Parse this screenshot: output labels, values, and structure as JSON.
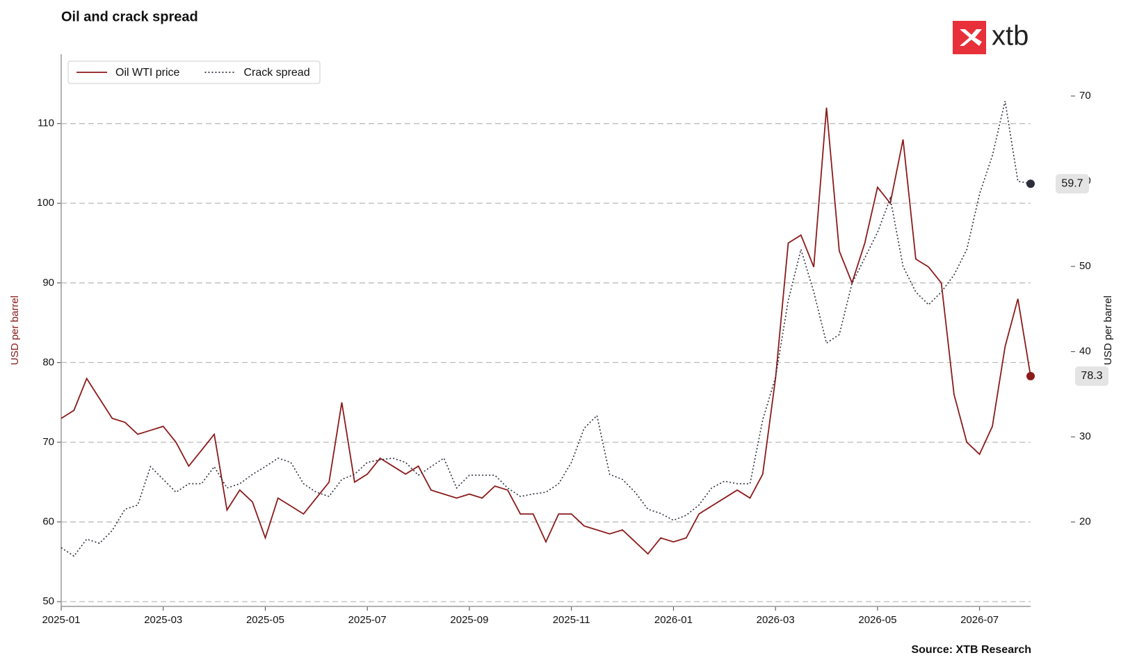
{
  "chart_data": {
    "type": "line",
    "title": "Oil and crack spread",
    "source": "Source: XTB Research",
    "logo": "xtb",
    "ylabel": "USD per barrel",
    "y2label": "USD per barrel",
    "x": [
      0,
      0.25,
      0.5,
      0.75,
      1,
      1.25,
      1.5,
      1.75,
      2,
      2.25,
      2.5,
      2.75,
      3,
      3.25,
      3.5,
      3.75,
      4,
      4.25,
      4.5,
      4.75,
      5,
      5.25,
      5.5,
      5.75,
      6,
      6.25,
      6.5,
      6.75,
      7,
      7.25,
      7.5,
      7.75,
      8,
      8.25,
      8.5,
      8.75,
      9,
      9.25,
      9.5,
      9.75,
      10,
      10.25,
      10.5,
      10.75,
      11,
      11.25,
      11.5,
      11.75,
      12,
      12.25,
      12.5,
      12.75,
      13,
      13.25,
      13.5,
      13.75,
      14,
      14.25,
      14.5,
      14.75,
      15,
      15.25,
      15.5,
      15.75,
      16,
      16.25,
      16.5,
      16.75,
      17,
      17.25,
      17.5,
      17.75,
      18,
      18.25,
      18.5,
      18.75,
      19
    ],
    "series": [
      {
        "name": "Oil WTI price",
        "color": "#8b1a1a",
        "dash": "solid",
        "axis": "y",
        "values": [
          73,
          74,
          78,
          75.5,
          73,
          72.5,
          71,
          71.5,
          72,
          70,
          67,
          69,
          71,
          61.5,
          64,
          62.5,
          58,
          63,
          62,
          61,
          63,
          65,
          75,
          65,
          66,
          68,
          67,
          66,
          67,
          64,
          63.5,
          63,
          63.5,
          63,
          64.5,
          64,
          61,
          61,
          57.5,
          61,
          61,
          59.5,
          59,
          58.5,
          59,
          57.5,
          56,
          58,
          57.5,
          58,
          61,
          62,
          63,
          64,
          63,
          66,
          78,
          95,
          96,
          92,
          112,
          94,
          90,
          95,
          102,
          100,
          108,
          93,
          92,
          90,
          76,
          70,
          68.5,
          72,
          82,
          88,
          78.3
        ]
      },
      {
        "name": "Crack spread",
        "color": "#2b2d3a",
        "dash": "dotted",
        "axis": "y2",
        "values": [
          17,
          16,
          18,
          17.5,
          19,
          21.5,
          22,
          26.5,
          25,
          23.5,
          24.5,
          24.5,
          26.5,
          24,
          24.5,
          25.6,
          26.5,
          27.5,
          27,
          24.5,
          23.5,
          23,
          25,
          25.6,
          27,
          27.3,
          27.5,
          27,
          25.5,
          26.5,
          27.5,
          24,
          25.5,
          25.5,
          25.5,
          24,
          23,
          23.3,
          23.5,
          24.5,
          27,
          31,
          32.5,
          25.6,
          25,
          23.5,
          21.5,
          21,
          20.2,
          20.8,
          22,
          24,
          24.8,
          24.5,
          24.5,
          32,
          37,
          46,
          52,
          47,
          41,
          42,
          48,
          51,
          54,
          58,
          50,
          47,
          45.5,
          47,
          49,
          52,
          58.5,
          63,
          69.4,
          60,
          59.7
        ]
      }
    ],
    "xlim": [
      0,
      19
    ],
    "xticks": [
      {
        "value": 0,
        "label": "2025-01"
      },
      {
        "value": 2,
        "label": "2025-03"
      },
      {
        "value": 4,
        "label": "2025-05"
      },
      {
        "value": 6,
        "label": "2025-07"
      },
      {
        "value": 8,
        "label": "2025-09"
      },
      {
        "value": 10,
        "label": "2025-11"
      },
      {
        "value": 12,
        "label": "2026-01"
      },
      {
        "value": 14,
        "label": "2026-03"
      },
      {
        "value": 16,
        "label": "2026-05"
      },
      {
        "value": 18,
        "label": "2026-07"
      }
    ],
    "ylim": [
      49.4,
      118.7
    ],
    "yticks": [
      50,
      60,
      70,
      80,
      90,
      100,
      110
    ],
    "y2lim": [
      10.1,
      74.9
    ],
    "y2ticks": [
      20,
      30,
      40,
      50,
      60,
      70
    ],
    "grid": true,
    "legend": "upper left"
  }
}
